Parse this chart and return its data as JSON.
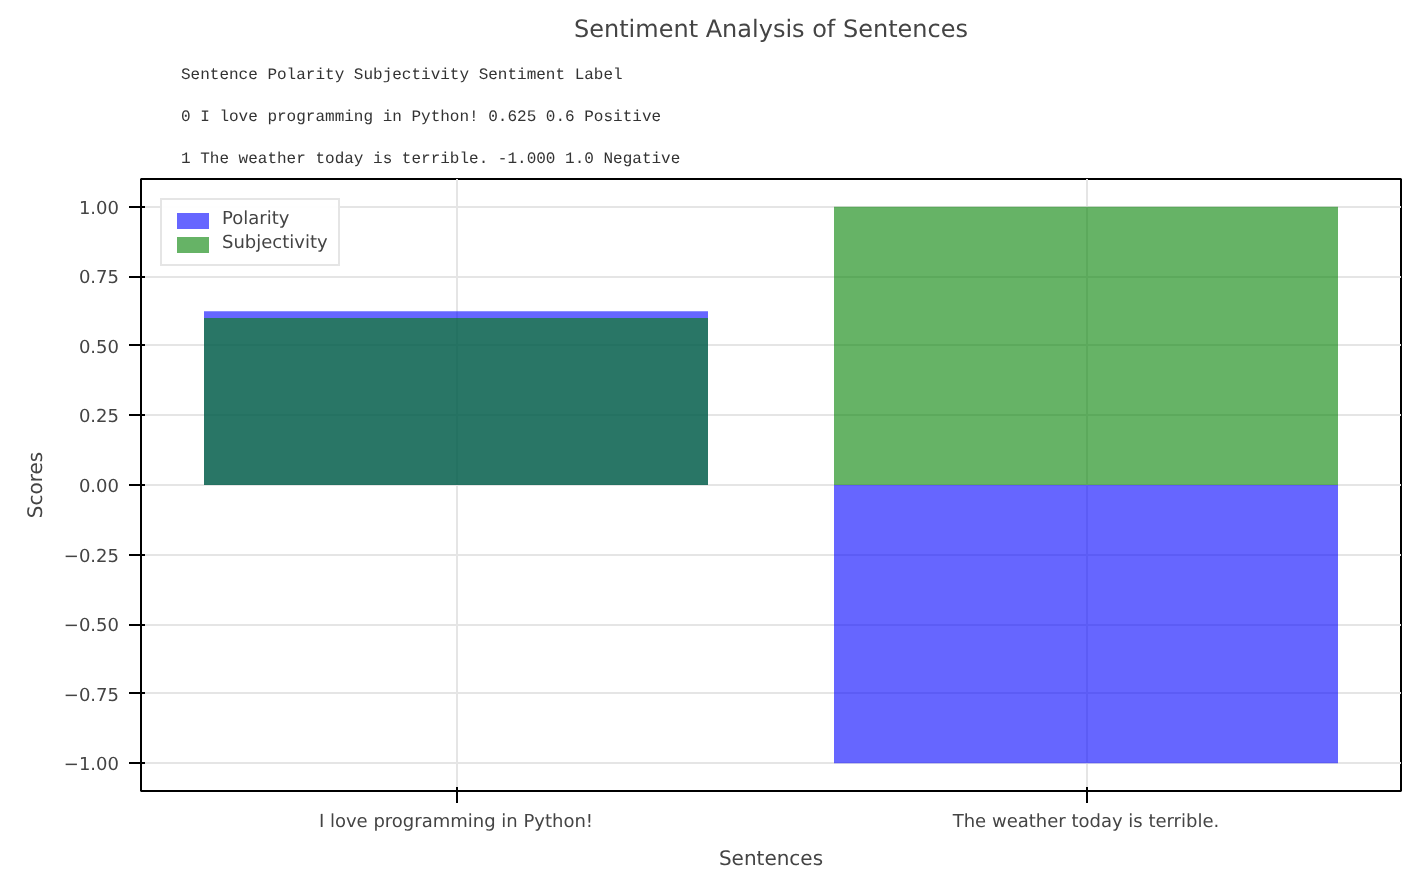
{
  "chart_data": {
    "type": "bar",
    "title": "Sentiment Analysis of Sentences",
    "xlabel": "Sentences",
    "ylabel": "Scores",
    "annotations": [
      "                          Sentence  Polarity  Subjectivity Sentiment Label",
      "0    I love programming in Python!     0.625           0.6        Positive",
      "1  The weather today is terrible.    -1.000           1.0        Negative"
    ],
    "categories": [
      "I love programming in Python!",
      "The weather today is terrible."
    ],
    "series": [
      {
        "name": "Polarity",
        "color": "#0000ff",
        "values": [
          0.625,
          -1.0
        ]
      },
      {
        "name": "Subjectivity",
        "color": "#008000",
        "values": [
          0.6,
          1.0
        ]
      }
    ],
    "ylim": [
      -1.1,
      1.1
    ],
    "yticks": [
      {
        "value": -1.0,
        "label": "−1.00"
      },
      {
        "value": -0.75,
        "label": "−0.75"
      },
      {
        "value": -0.5,
        "label": "−0.50"
      },
      {
        "value": -0.25,
        "label": "−0.25"
      },
      {
        "value": 0,
        "label": "0.00"
      },
      {
        "value": 0.25,
        "label": "0.25"
      },
      {
        "value": 0.5,
        "label": "0.50"
      },
      {
        "value": 0.75,
        "label": "0.75"
      },
      {
        "value": 1.0,
        "label": "1.00"
      }
    ],
    "grid": true,
    "legend": "top left"
  }
}
